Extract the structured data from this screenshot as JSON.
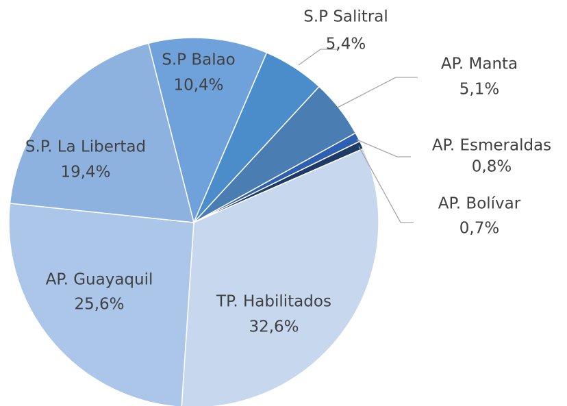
{
  "chart_data": {
    "type": "pie",
    "categories": [
      "S.P Balao",
      "S.P Salitral",
      "AP. Manta",
      "AP. Esmeraldas",
      "AP. Bolívar",
      "TP. Habilitados",
      "AP. Guayaquil",
      "S.P. La Libertad"
    ],
    "values": [
      10.4,
      5.4,
      5.1,
      0.8,
      0.7,
      32.6,
      25.6,
      19.4
    ],
    "value_labels": [
      "10,4%",
      "5,4%",
      "5,1%",
      "0,8%",
      "0,7%",
      "32,6%",
      "25,6%",
      "19,4%"
    ],
    "colors": [
      "#6fa2da",
      "#4a8dca",
      "#4a7eb2",
      "#2d5fb2",
      "#1e3b68",
      "#c6d7ee",
      "#abc6e9",
      "#8eb2e0"
    ]
  }
}
